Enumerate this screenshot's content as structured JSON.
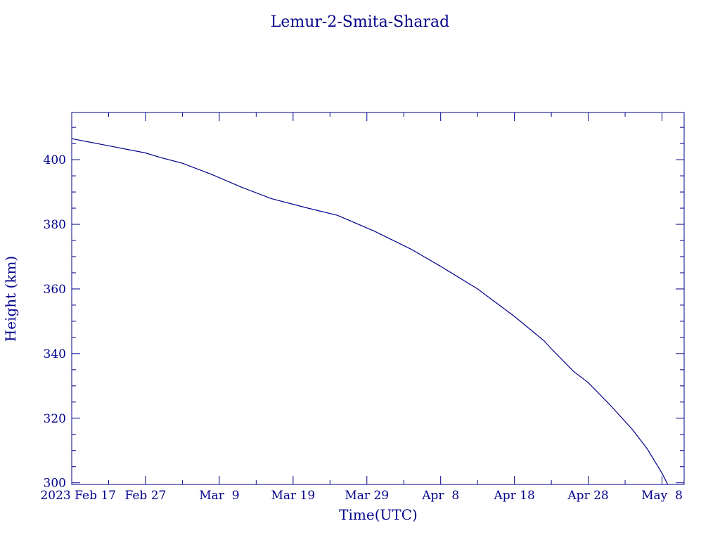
{
  "chart_data": {
    "type": "line",
    "title": "Lemur-2-Smita-Sharad",
    "xlabel": "Time(UTC)",
    "ylabel": "Height (km)",
    "x_start_date": "2023-02-17",
    "xlim": [
      "2023-02-17",
      "2023-05-11"
    ],
    "ylim": [
      299.5,
      414.6
    ],
    "grid": false,
    "legend": "none",
    "line_color": "#00008b",
    "x_ticks": [
      {
        "date": "2023-02-17",
        "label": "2023 Feb 17"
      },
      {
        "date": "2023-02-27",
        "label": "Feb 27"
      },
      {
        "date": "2023-03-09",
        "label": "Mar  9"
      },
      {
        "date": "2023-03-19",
        "label": "Mar 19"
      },
      {
        "date": "2023-03-29",
        "label": "Mar 29"
      },
      {
        "date": "2023-04-08",
        "label": "Apr  8"
      },
      {
        "date": "2023-04-18",
        "label": "Apr 18"
      },
      {
        "date": "2023-04-28",
        "label": "Apr 28"
      },
      {
        "date": "2023-05-08",
        "label": "May  8"
      }
    ],
    "y_ticks": [
      300,
      320,
      340,
      360,
      380,
      400
    ],
    "series": [
      {
        "x": [
          "2023-02-17",
          "2023-02-22",
          "2023-02-27",
          "2023-03-01",
          "2023-03-04",
          "2023-03-08",
          "2023-03-12",
          "2023-03-16",
          "2023-03-21",
          "2023-03-25",
          "2023-03-26",
          "2023-03-30",
          "2023-04-04",
          "2023-04-08",
          "2023-04-13",
          "2023-04-18",
          "2023-04-22",
          "2023-04-23",
          "2023-04-26",
          "2023-04-28",
          "2023-05-01",
          "2023-05-04",
          "2023-05-06",
          "2023-05-08",
          "2023-05-09"
        ],
        "values": [
          406.5,
          404.3,
          402.1,
          400.7,
          398.9,
          395.4,
          391.5,
          388.0,
          385.0,
          382.8,
          381.8,
          377.9,
          372.3,
          367.0,
          360.0,
          351.5,
          344.0,
          341.5,
          334.5,
          331.0,
          324.0,
          316.5,
          310.5,
          303.0,
          298.5
        ]
      }
    ]
  }
}
